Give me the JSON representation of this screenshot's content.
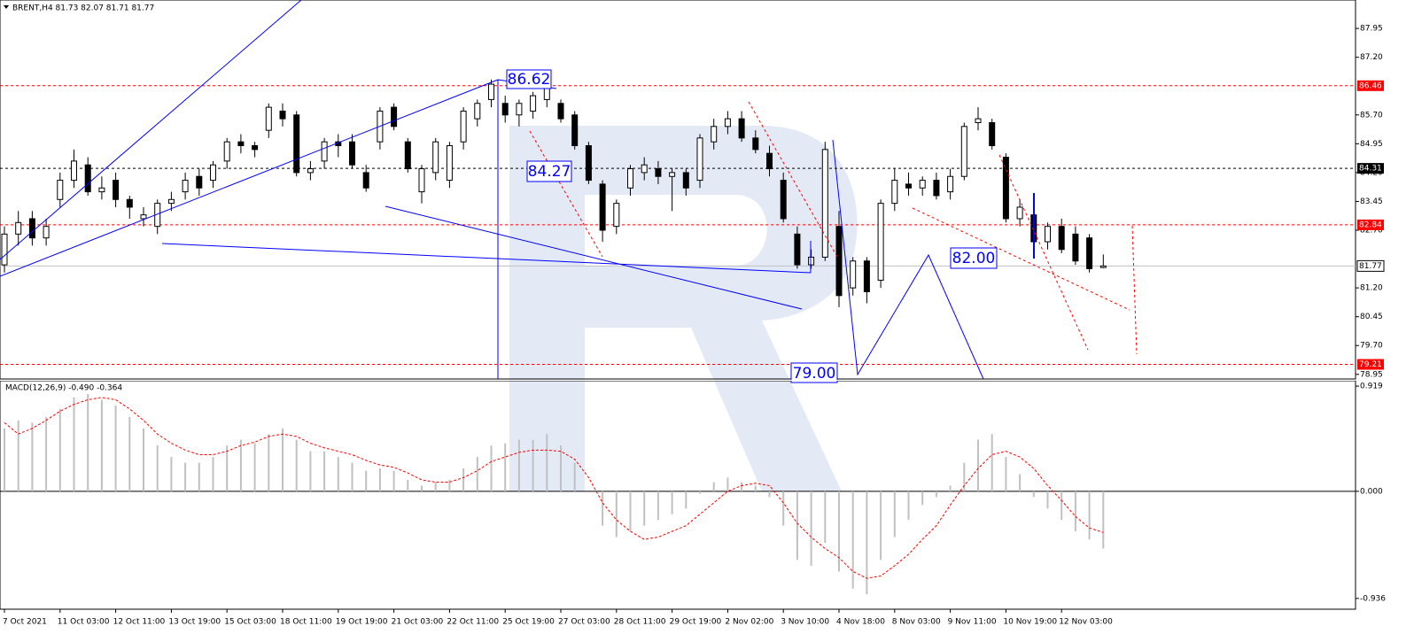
{
  "chart_data": {
    "type": "candlestick",
    "title": "BRENT,H4 81.73 82.07 81.71 81.77",
    "categories": [
      "7 Oct 2021",
      null,
      null,
      null,
      "11 Oct 03:00",
      null,
      null,
      null,
      "12 Oct 11:00",
      null,
      null,
      null,
      "13 Oct 19:00",
      null,
      null,
      null,
      "15 Oct 03:00",
      null,
      null,
      null,
      "18 Oct 11:00",
      null,
      null,
      null,
      "19 Oct 19:00",
      null,
      null,
      null,
      "21 Oct 03:00",
      null,
      null,
      null,
      "22 Oct 11:00",
      null,
      null,
      null,
      "25 Oct 19:00",
      null,
      null,
      null,
      "27 Oct 03:00",
      null,
      null,
      null,
      "28 Oct 11:00",
      null,
      null,
      null,
      "29 Oct 19:00",
      null,
      null,
      null,
      "2 Nov 02:00",
      null,
      null,
      null,
      "3 Nov 10:00",
      null,
      null,
      null,
      "4 Nov 18:00",
      null,
      null,
      null,
      "8 Nov 03:00",
      null,
      null,
      null,
      "9 Nov 11:00",
      null,
      null,
      null,
      "10 Nov 19:00",
      null,
      null,
      null,
      "12 Nov 03:00",
      null,
      null,
      null
    ],
    "candles": [
      [
        81.8,
        82.8,
        81.6,
        82.6
      ],
      [
        82.6,
        83.2,
        82.3,
        82.9
      ],
      [
        83.0,
        83.2,
        82.3,
        82.5
      ],
      [
        82.5,
        83.0,
        82.3,
        82.8
      ],
      [
        83.5,
        84.2,
        83.3,
        84.0
      ],
      [
        84.0,
        84.8,
        83.8,
        84.5
      ],
      [
        84.4,
        84.6,
        83.6,
        83.7
      ],
      [
        83.7,
        84.1,
        83.5,
        83.8
      ],
      [
        84.0,
        84.2,
        83.3,
        83.5
      ],
      [
        83.5,
        83.6,
        83.0,
        83.3
      ],
      [
        83.0,
        83.3,
        82.8,
        83.1
      ],
      [
        82.8,
        83.5,
        82.6,
        83.4
      ],
      [
        83.4,
        83.7,
        83.2,
        83.5
      ],
      [
        83.7,
        84.2,
        83.5,
        84.0
      ],
      [
        84.1,
        84.3,
        83.6,
        83.8
      ],
      [
        84.0,
        84.5,
        83.8,
        84.4
      ],
      [
        84.5,
        85.1,
        84.3,
        85.0
      ],
      [
        85.0,
        85.2,
        84.7,
        84.9
      ],
      [
        84.9,
        85.0,
        84.6,
        84.8
      ],
      [
        85.3,
        86.0,
        85.1,
        85.9
      ],
      [
        85.8,
        86.0,
        85.4,
        85.6
      ],
      [
        85.7,
        85.8,
        84.1,
        84.2
      ],
      [
        84.2,
        84.5,
        84.0,
        84.3
      ],
      [
        84.5,
        85.1,
        84.3,
        85.0
      ],
      [
        85.0,
        85.2,
        84.6,
        84.9
      ],
      [
        85.0,
        85.2,
        84.3,
        84.4
      ],
      [
        84.2,
        84.4,
        83.7,
        83.8
      ],
      [
        85.0,
        85.9,
        84.8,
        85.8
      ],
      [
        85.9,
        86.0,
        85.3,
        85.4
      ],
      [
        85.0,
        85.1,
        84.2,
        84.3
      ],
      [
        83.7,
        84.4,
        83.4,
        84.3
      ],
      [
        84.2,
        85.1,
        84.0,
        85.0
      ],
      [
        84.0,
        85.0,
        83.8,
        84.9
      ],
      [
        85.0,
        85.9,
        84.8,
        85.8
      ],
      [
        85.6,
        86.1,
        85.4,
        86.0
      ],
      [
        86.1,
        86.62,
        85.9,
        86.5
      ],
      [
        86.0,
        86.2,
        85.5,
        85.7
      ],
      [
        85.7,
        86.1,
        85.4,
        86.0
      ],
      [
        85.8,
        86.3,
        85.6,
        86.2
      ],
      [
        86.1,
        86.5,
        85.9,
        86.4
      ],
      [
        86.0,
        86.1,
        85.5,
        85.6
      ],
      [
        85.7,
        85.8,
        84.8,
        84.9
      ],
      [
        84.9,
        85.0,
        83.9,
        84.0
      ],
      [
        83.9,
        84.0,
        82.4,
        82.7
      ],
      [
        82.8,
        83.5,
        82.6,
        83.4
      ],
      [
        83.8,
        84.4,
        83.6,
        84.3
      ],
      [
        84.2,
        84.6,
        84.0,
        84.4
      ],
      [
        84.3,
        84.5,
        83.9,
        84.1
      ],
      [
        84.1,
        84.3,
        83.2,
        84.2
      ],
      [
        84.2,
        84.3,
        83.6,
        83.8
      ],
      [
        84.0,
        85.2,
        83.8,
        85.1
      ],
      [
        85.0,
        85.6,
        84.8,
        85.4
      ],
      [
        85.4,
        85.8,
        85.2,
        85.6
      ],
      [
        85.6,
        85.8,
        85.0,
        85.1
      ],
      [
        85.1,
        85.3,
        84.7,
        84.8
      ],
      [
        84.7,
        84.9,
        84.1,
        84.3
      ],
      [
        84.0,
        84.2,
        82.9,
        83.0
      ],
      [
        82.6,
        82.8,
        81.7,
        81.8
      ],
      [
        81.8,
        82.2,
        81.7,
        82.0
      ],
      [
        82.0,
        85.0,
        81.9,
        84.8
      ],
      [
        82.8,
        83.2,
        80.7,
        81.0
      ],
      [
        81.2,
        82.0,
        81.0,
        81.9
      ],
      [
        81.9,
        82.0,
        80.8,
        81.1
      ],
      [
        81.4,
        83.5,
        81.2,
        83.4
      ],
      [
        83.4,
        84.3,
        83.2,
        84.0
      ],
      [
        83.9,
        84.2,
        83.6,
        83.8
      ],
      [
        83.8,
        84.1,
        83.6,
        84.0
      ],
      [
        84.0,
        84.2,
        83.5,
        83.6
      ],
      [
        83.7,
        84.3,
        83.5,
        84.1
      ],
      [
        84.1,
        85.5,
        84.0,
        85.4
      ],
      [
        85.5,
        85.9,
        85.3,
        85.6
      ],
      [
        85.5,
        85.6,
        84.8,
        84.9
      ],
      [
        84.6,
        84.7,
        82.9,
        83.0
      ],
      [
        83.0,
        83.5,
        82.8,
        83.3
      ],
      [
        83.1,
        83.2,
        82.3,
        82.4
      ],
      [
        82.4,
        82.9,
        82.2,
        82.8
      ],
      [
        82.8,
        83.0,
        82.1,
        82.2
      ],
      [
        82.6,
        82.8,
        81.8,
        81.9
      ],
      [
        82.5,
        82.6,
        81.6,
        81.7
      ],
      [
        81.73,
        82.07,
        81.71,
        81.77
      ]
    ],
    "up_color": "#ffffff",
    "down_color": "#000000",
    "wick_color": "#000000",
    "ylim": [
      78.83,
      88.69
    ],
    "yticks": [
      87.95,
      {
        "value": 87.2,
        "label": "87.20"
      },
      {
        "value": 85.7,
        "label": "85.70"
      },
      84.95,
      {
        "value": 84.2,
        "label": "84.20"
      },
      83.45,
      {
        "value": 82.7,
        "label": "82.70"
      },
      {
        "value": 81.2,
        "label": "81.20"
      },
      80.45,
      {
        "value": 79.7,
        "label": "79.70"
      },
      78.95
    ],
    "price_levels": [
      {
        "value": 86.46,
        "color": "#ff0000"
      },
      {
        "value": 84.31,
        "color": "#000000"
      },
      {
        "value": 82.84,
        "color": "#ff0000"
      },
      {
        "value": 81.77,
        "color": "#c0c0c0"
      },
      {
        "value": 79.21,
        "color": "#ff0000"
      }
    ],
    "annotations": [
      "86.62",
      "84.27",
      "82.00",
      "79.00"
    ],
    "macd": {
      "title": "MACD(12,26,9) -0.490 -0.364",
      "ylim": [
        -1.03,
        0.966
      ],
      "yticks": [
        0.919,
        {
          "value": 0,
          "label": "0.000"
        },
        -0.936
      ],
      "histogram": [
        0.55,
        0.62,
        0.6,
        0.65,
        0.72,
        0.82,
        0.85,
        0.8,
        0.75,
        0.65,
        0.55,
        0.4,
        0.3,
        0.25,
        0.25,
        0.3,
        0.4,
        0.45,
        0.42,
        0.5,
        0.55,
        0.45,
        0.35,
        0.35,
        0.3,
        0.25,
        0.18,
        0.2,
        0.18,
        0.1,
        0.05,
        0.08,
        0.1,
        0.2,
        0.3,
        0.4,
        0.42,
        0.45,
        0.45,
        0.5,
        0.4,
        0.25,
        0.0,
        -0.3,
        -0.4,
        -0.35,
        -0.3,
        -0.25,
        -0.2,
        -0.15,
        -0.02,
        0.08,
        0.12,
        0.08,
        0.05,
        -0.05,
        -0.3,
        -0.6,
        -0.65,
        -0.45,
        -0.7,
        -0.85,
        -0.9,
        -0.6,
        -0.4,
        -0.25,
        -0.12,
        -0.05,
        0.05,
        0.25,
        0.45,
        0.5,
        0.3,
        0.15,
        -0.05,
        -0.15,
        -0.25,
        -0.35,
        -0.42,
        -0.5
      ],
      "signal": [
        0.6,
        0.5,
        0.55,
        0.62,
        0.7,
        0.76,
        0.8,
        0.82,
        0.8,
        0.72,
        0.62,
        0.5,
        0.42,
        0.36,
        0.32,
        0.32,
        0.35,
        0.4,
        0.43,
        0.48,
        0.5,
        0.48,
        0.42,
        0.38,
        0.35,
        0.32,
        0.27,
        0.23,
        0.21,
        0.16,
        0.1,
        0.08,
        0.08,
        0.12,
        0.18,
        0.26,
        0.3,
        0.34,
        0.36,
        0.36,
        0.35,
        0.28,
        0.12,
        -0.1,
        -0.25,
        -0.35,
        -0.42,
        -0.4,
        -0.35,
        -0.3,
        -0.2,
        -0.1,
        0.0,
        0.05,
        0.07,
        0.05,
        -0.1,
        -0.28,
        -0.4,
        -0.5,
        -0.58,
        -0.7,
        -0.76,
        -0.74,
        -0.65,
        -0.55,
        -0.42,
        -0.3,
        -0.12,
        0.05,
        0.2,
        0.32,
        0.35,
        0.3,
        0.2,
        0.05,
        -0.08,
        -0.22,
        -0.32,
        -0.36
      ],
      "histogram_color": "#c0c0c0",
      "signal_color": "#ff0000"
    }
  }
}
